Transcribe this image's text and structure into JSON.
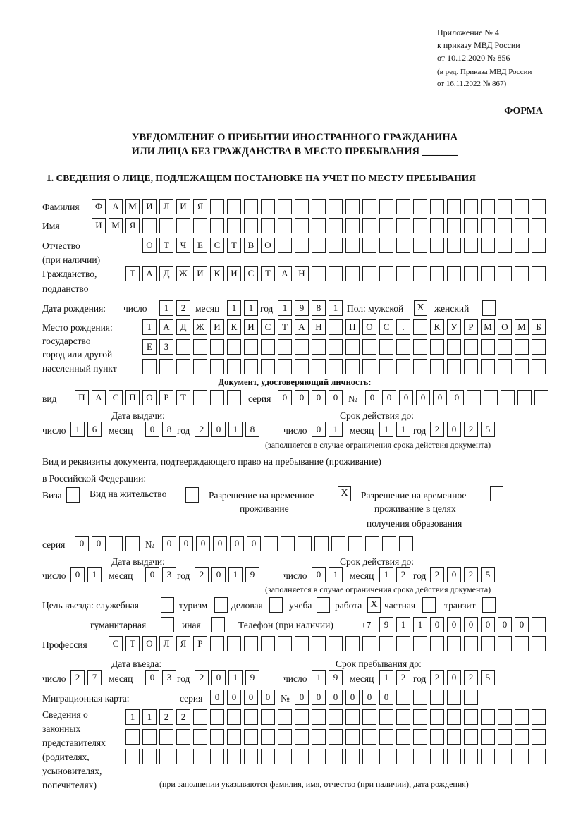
{
  "header": {
    "line1": "Приложение № 4",
    "line2": "к приказу МВД России",
    "line3": "от 10.12.2020 № 856",
    "line4": "(в ред. Приказа МВД России",
    "line5": "от 16.11.2022 № 867)",
    "forma": "ФОРМА",
    "title1": "УВЕДОМЛЕНИЕ О ПРИБЫТИИ ИНОСТРАННОГО ГРАЖДАНИНА",
    "title2": "ИЛИ ЛИЦА БЕЗ ГРАЖДАНСТВА В МЕСТО ПРЕБЫВАНИЯ _______",
    "section1": "1. СВЕДЕНИЯ О ЛИЦЕ, ПОДЛЕЖАЩЕМ ПОСТАНОВКЕ НА УЧЕТ ПО МЕСТУ ПРЕБЫВАНИЯ"
  },
  "labels": {
    "surname": "Фамилия",
    "name": "Имя",
    "patronymic1": "Отчество",
    "patronymic2": "(при наличии)",
    "citizenship1": "Гражданство,",
    "citizenship2": "подданство",
    "birthdate": "Дата рождения:",
    "day": "число",
    "month": "месяц",
    "year": "год",
    "sex": "Пол: мужской",
    "female": "женский",
    "birthplace1": "Место рождения:",
    "birthplace2": "государство",
    "birthplace3": "город или другой",
    "birthplace4": "населенный пункт",
    "id_doc": "Документ, удостоверяющий личность:",
    "kind": "вид",
    "series": "серия",
    "number": "№",
    "issue_date": "Дата выдачи:",
    "valid_until": "Срок действия до:",
    "valid_note": "(заполняется в случае ограничения срока действия документа)",
    "right_doc1": "Вид и реквизиты документа, подтверждающего право на пребывание (проживание)",
    "right_doc2": "в Российской Федерации:",
    "visa": "Виза",
    "residence": "Вид на жительство",
    "temp1": "Разрешение на временное",
    "temp2": "проживание",
    "edu1": "Разрешение на временное",
    "edu2": "проживание в целях",
    "edu3": "получения образования",
    "purpose": "Цель въезда: служебная",
    "tourism": "туризм",
    "business": "деловая",
    "study": "учеба",
    "work": "работа",
    "private": "частная",
    "transit": "транзит",
    "humanitarian": "гуманитарная",
    "other": "иная",
    "phone": "Телефон (при наличии)",
    "phone_prefix": "+7",
    "profession": "Профессия",
    "entry_date": "Дата въезда:",
    "stay_until": "Срок пребывания до:",
    "migration_card": "Миграционная карта:",
    "reps1": "Сведения о",
    "reps2": "законных",
    "reps3": "представителях",
    "reps4": "(родителях,",
    "reps5": "усыновителях,",
    "reps6": "попечителях)",
    "reps_note": "(при заполнении указываются фамилия, имя, отчество (при наличии), дата рождения)"
  },
  "values": {
    "surname": "ФАМИЛИЯ",
    "name": "ИМЯ",
    "patronymic": "ОТЧЕСТВО",
    "citizenship": "ТАДЖИКИСТАН",
    "birth_day": "12",
    "birth_month": "11",
    "birth_year": "1981",
    "male": "X",
    "female": "",
    "birthplace1": "ТАДЖИКИСТАН ПОС. КУРМОМБ",
    "birthplace2": "ЕЗ",
    "birthplace3": "",
    "doc_kind": "ПАСПОРТ",
    "doc_series": "0000",
    "doc_number": "000000",
    "doc_issue_day": "16",
    "doc_issue_month": "08",
    "doc_issue_year": "2018",
    "doc_valid_day": "01",
    "doc_valid_month": "11",
    "doc_valid_year": "2025",
    "visa": "",
    "residence": "",
    "temp_residence": "X",
    "edu_residence": "",
    "rdoc_series": "00",
    "rdoc_number": "000000",
    "rdoc_issue_day": "01",
    "rdoc_issue_month": "03",
    "rdoc_issue_year": "2019",
    "rdoc_valid_day": "01",
    "rdoc_valid_month": "12",
    "rdoc_valid_year": "2025",
    "p_service": "",
    "p_tourism": "",
    "p_business": "",
    "p_study": "",
    "p_work": "X",
    "p_private": "",
    "p_transit": "",
    "p_humanitarian": "",
    "p_other": "",
    "phone": "911000000",
    "profession": "СТОЛЯР",
    "entry_day": "27",
    "entry_month": "03",
    "entry_year": "2019",
    "stay_day": "19",
    "stay_month": "12",
    "stay_year": "2025",
    "mc_series": "0000",
    "mc_number": "000000",
    "reps1": "1122",
    "reps2": "",
    "reps3": ""
  }
}
